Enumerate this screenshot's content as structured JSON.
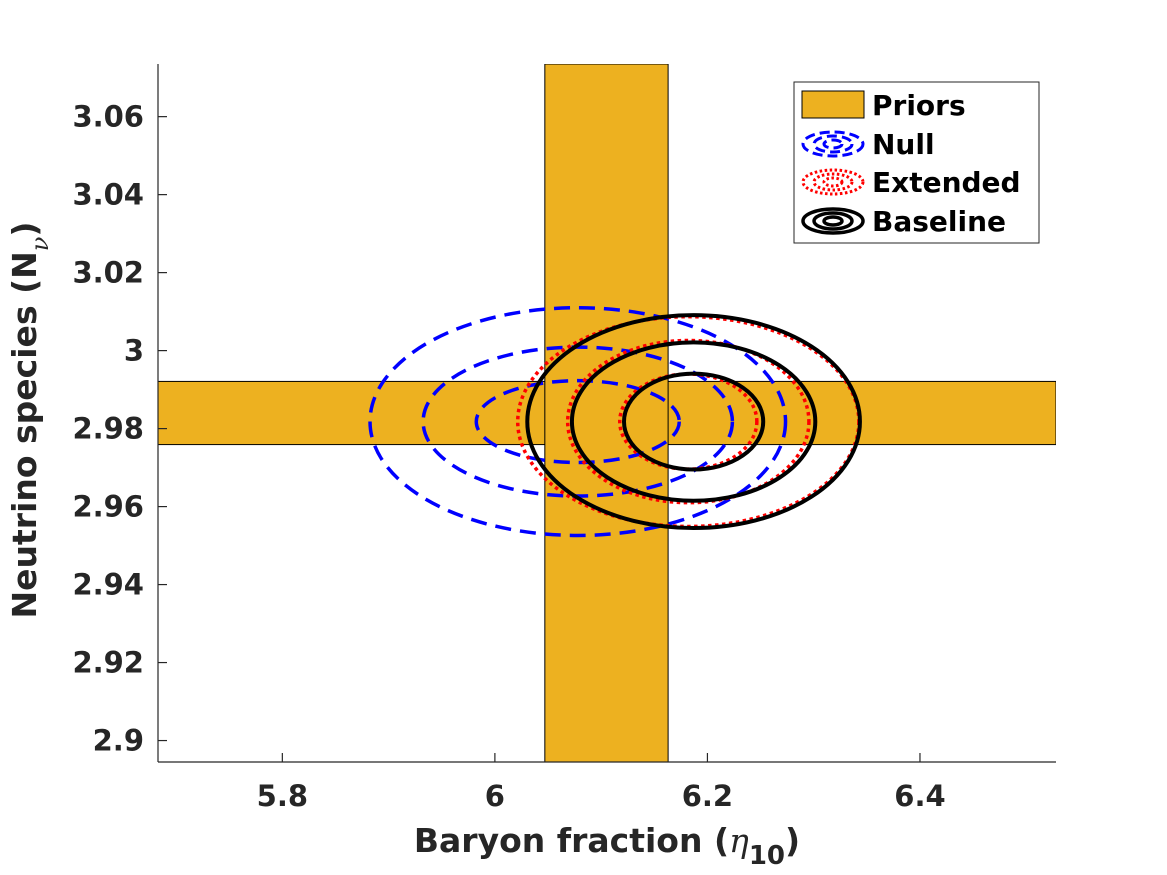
{
  "chart_data": {
    "type": "contour",
    "title": "",
    "xlabel": {
      "text": "Baryon fraction (",
      "symbol": "η",
      "subscript": "10",
      "close": ")"
    },
    "ylabel": {
      "text": "Neutrino species (N",
      "subscript": "ν",
      "close": ")"
    },
    "xlim": [
      5.683,
      6.528
    ],
    "ylim": [
      2.8945,
      3.0735
    ],
    "x_ticks": [
      5.8,
      6.0,
      6.2,
      6.4
    ],
    "x_tick_labels": [
      "5.8",
      "6",
      "6.2",
      "6.4"
    ],
    "y_ticks": [
      2.9,
      2.92,
      2.94,
      2.96,
      2.98,
      3.0,
      3.02,
      3.04,
      3.06
    ],
    "y_tick_labels": [
      "2.9",
      "2.92",
      "2.94",
      "2.96",
      "2.98",
      "3",
      "3.02",
      "3.04",
      "3.06"
    ],
    "grid": false,
    "legend_position": "top-right",
    "legend": [
      "Priors",
      "Null",
      "Extended",
      "Baseline"
    ],
    "priors": {
      "name": "Priors",
      "color": "#EDB120",
      "x_band": [
        6.047,
        6.163
      ],
      "y_band": [
        2.9759,
        2.9921
      ]
    },
    "series": [
      {
        "name": "Null",
        "style": "dashed",
        "color": "#0000FF",
        "center": [
          6.078,
          2.9818
        ],
        "contours": [
          {
            "rx": 0.0955,
            "ry": 0.0105
          },
          {
            "rx": 0.1455,
            "ry": 0.0191
          },
          {
            "rx": 0.1955,
            "ry": 0.0292
          }
        ]
      },
      {
        "name": "Extended",
        "style": "dotted",
        "color": "#FF0000",
        "center": [
          6.182,
          2.9818
        ],
        "contours": [
          {
            "rx": 0.0645,
            "ry": 0.0122
          },
          {
            "rx": 0.1135,
            "ry": 0.0208
          },
          {
            "rx": 0.1605,
            "ry": 0.0269
          }
        ]
      },
      {
        "name": "Baseline",
        "style": "solid",
        "color": "#000000",
        "center": [
          6.187,
          2.9818
        ],
        "contours": [
          {
            "rx": 0.0655,
            "ry": 0.0123
          },
          {
            "rx": 0.1145,
            "ry": 0.0203
          },
          {
            "rx": 0.1565,
            "ry": 0.0273
          }
        ]
      }
    ]
  }
}
